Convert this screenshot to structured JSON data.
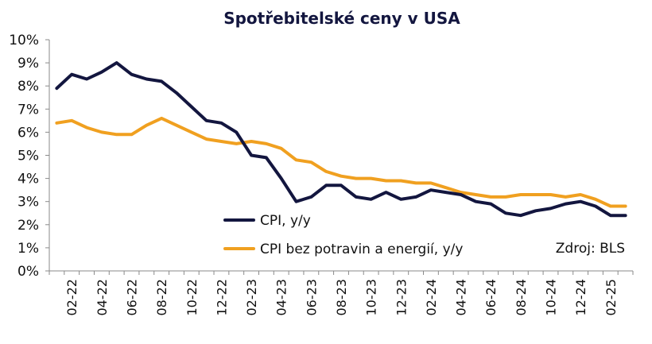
{
  "chart_data": {
    "type": "line",
    "title": "Spotřebitelské ceny v USA",
    "xlabel": "",
    "ylabel": "",
    "ylim": [
      0,
      10
    ],
    "yticks": [
      "0%",
      "1%",
      "2%",
      "3%",
      "4%",
      "5%",
      "6%",
      "7%",
      "8%",
      "9%",
      "10%"
    ],
    "x": [
      "01-22",
      "02-22",
      "03-22",
      "04-22",
      "05-22",
      "06-22",
      "07-22",
      "08-22",
      "09-22",
      "10-22",
      "11-22",
      "12-22",
      "01-23",
      "02-23",
      "03-23",
      "04-23",
      "05-23",
      "06-23",
      "07-23",
      "08-23",
      "09-23",
      "10-23",
      "11-23",
      "12-23",
      "01-24",
      "02-24",
      "03-24",
      "04-24",
      "05-24",
      "06-24",
      "07-24",
      "08-24",
      "09-24",
      "10-24",
      "11-24",
      "12-24",
      "01-25",
      "02-25",
      "03-25"
    ],
    "xtick_labels": [
      "02-22",
      "04-22",
      "06-22",
      "08-22",
      "10-22",
      "12-22",
      "02-23",
      "04-23",
      "06-23",
      "08-23",
      "10-23",
      "12-23",
      "02-24",
      "04-24",
      "06-24",
      "08-24",
      "10-24",
      "12-24",
      "02-25"
    ],
    "series": [
      {
        "name": "CPI, y/y",
        "color": "#13163f",
        "values": [
          7.9,
          8.5,
          8.3,
          8.6,
          9.0,
          8.5,
          8.3,
          8.2,
          7.7,
          7.1,
          6.5,
          6.4,
          6.0,
          5.0,
          4.9,
          4.0,
          3.0,
          3.2,
          3.7,
          3.7,
          3.2,
          3.1,
          3.4,
          3.1,
          3.2,
          3.5,
          3.4,
          3.3,
          3.0,
          2.9,
          2.5,
          2.4,
          2.6,
          2.7,
          2.9,
          3.0,
          2.8,
          2.4,
          2.4
        ]
      },
      {
        "name": "CPI bez potravin a energií, y/y",
        "color": "#f0a020",
        "values": [
          6.4,
          6.5,
          6.2,
          6.0,
          5.9,
          5.9,
          6.3,
          6.6,
          6.3,
          6.0,
          5.7,
          5.6,
          5.5,
          5.6,
          5.5,
          5.3,
          4.8,
          4.7,
          4.3,
          4.1,
          4.0,
          4.0,
          3.9,
          3.9,
          3.8,
          3.8,
          3.6,
          3.4,
          3.3,
          3.2,
          3.2,
          3.3,
          3.3,
          3.3,
          3.2,
          3.3,
          3.1,
          2.8,
          2.8
        ]
      }
    ],
    "legend": "inside-bottom-center",
    "source_note": "Zdroj: BLS",
    "grid": false
  }
}
